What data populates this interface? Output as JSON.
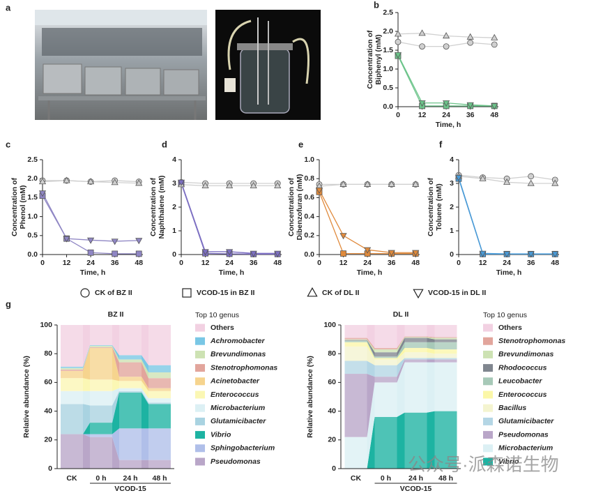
{
  "panel_a": {
    "label": "a"
  },
  "legend": [
    {
      "name": "CK of BZ II",
      "marker": "circle"
    },
    {
      "name": "VCOD-15 in BZ II",
      "marker": "square"
    },
    {
      "name": "CK of DL II",
      "marker": "triangle"
    },
    {
      "name": "VCOD-15 in DL II",
      "marker": "triangle-down"
    }
  ],
  "watermark": "公众号·派森诺生物",
  "chart_data": [
    {
      "type": "line",
      "label": "b",
      "ylabel": [
        "Concentration of",
        "Biphenyl (mM)"
      ],
      "xlabel": "Time, h",
      "x": [
        0,
        12,
        24,
        36,
        48
      ],
      "xlim": [
        0,
        50
      ],
      "xticks": [
        0,
        12,
        24,
        36,
        48
      ],
      "ylim": [
        0,
        2.5
      ],
      "yticks": [
        {
          "value": 0,
          "label": "0.0"
        },
        0.5,
        {
          "value": 1,
          "label": "1.0"
        },
        1.5,
        {
          "value": 2,
          "label": "2.0"
        },
        2.5
      ],
      "series": [
        {
          "marker": "circle",
          "color": "#d0d0d0",
          "values": [
            1.72,
            1.6,
            1.6,
            1.7,
            1.65
          ]
        },
        {
          "marker": "square",
          "color": "#6cc48a",
          "values": [
            1.35,
            0.02,
            0.02,
            0.02,
            0.02
          ]
        },
        {
          "marker": "triangle",
          "color": "#d0d0d0",
          "values": [
            1.93,
            1.95,
            1.88,
            1.85,
            1.83
          ]
        },
        {
          "marker": "triangle-down",
          "color": "#6cc48a",
          "values": [
            1.38,
            0.1,
            0.1,
            0.05,
            0.02
          ]
        }
      ]
    },
    {
      "type": "line",
      "label": "c",
      "ylabel": [
        "Concentration of",
        "Phenol (mM)"
      ],
      "xlabel": "Time, h",
      "x": [
        0,
        12,
        24,
        36,
        48
      ],
      "xlim": [
        0,
        50
      ],
      "xticks": [
        0,
        12,
        24,
        36,
        48
      ],
      "ylim": [
        0,
        2.5
      ],
      "yticks": [
        {
          "value": 0,
          "label": "0.0"
        },
        0.5,
        {
          "value": 1,
          "label": "1.0"
        },
        1.5,
        {
          "value": 2,
          "label": "2.0"
        },
        2.5
      ],
      "series": [
        {
          "marker": "circle",
          "color": "#d0d0d0",
          "values": [
            1.95,
            1.95,
            1.92,
            1.95,
            1.92
          ]
        },
        {
          "marker": "square",
          "color": "#8f86c4",
          "values": [
            1.55,
            0.42,
            0.05,
            0.02,
            0.02
          ]
        },
        {
          "marker": "triangle",
          "color": "#d0d0d0",
          "values": [
            1.92,
            1.95,
            1.92,
            1.9,
            1.88
          ]
        },
        {
          "marker": "triangle-down",
          "color": "#8f86c4",
          "values": [
            1.62,
            0.42,
            0.38,
            0.35,
            0.37
          ]
        }
      ]
    },
    {
      "type": "line",
      "label": "d",
      "ylabel": [
        "Concentration of",
        "Naphthalene (mM)"
      ],
      "xlabel": "Time, h",
      "x": [
        0,
        12,
        24,
        36,
        48
      ],
      "xlim": [
        0,
        50
      ],
      "xticks": [
        0,
        12,
        24,
        36,
        48
      ],
      "ylim": [
        0,
        4
      ],
      "yticks": [
        0,
        1,
        2,
        3,
        4
      ],
      "series": [
        {
          "marker": "circle",
          "color": "#d0d0d0",
          "values": [
            3.05,
            3.0,
            3.0,
            3.0,
            3.0
          ]
        },
        {
          "marker": "square",
          "color": "#7c6fc2",
          "values": [
            3.0,
            0.05,
            0.03,
            0.02,
            0.02
          ]
        },
        {
          "marker": "triangle",
          "color": "#d0d0d0",
          "values": [
            2.95,
            2.9,
            2.9,
            2.9,
            2.9
          ]
        },
        {
          "marker": "triangle-down",
          "color": "#7c6fc2",
          "values": [
            3.05,
            0.12,
            0.12,
            0.05,
            0.05
          ]
        }
      ]
    },
    {
      "type": "line",
      "label": "e",
      "ylabel": [
        "Concentration of",
        "Dibenzofuran (mM)"
      ],
      "xlabel": "Time, h",
      "x": [
        0,
        12,
        24,
        36,
        48
      ],
      "xlim": [
        0,
        50
      ],
      "xticks": [
        0,
        12,
        24,
        36,
        48
      ],
      "ylim": [
        0,
        1
      ],
      "yticks": [
        {
          "value": 0,
          "label": "0.0"
        },
        0.2,
        0.4,
        0.6,
        0.8,
        {
          "value": 1,
          "label": "1.0"
        }
      ],
      "series": [
        {
          "marker": "circle",
          "color": "#d0d0d0",
          "values": [
            0.74,
            0.74,
            0.74,
            0.74,
            0.74
          ]
        },
        {
          "marker": "square",
          "color": "#e08a3c",
          "values": [
            0.66,
            0.01,
            0.01,
            0.01,
            0.01
          ]
        },
        {
          "marker": "triangle",
          "color": "#d0d0d0",
          "values": [
            0.72,
            0.74,
            0.74,
            0.74,
            0.74
          ]
        },
        {
          "marker": "triangle-down",
          "color": "#e08a3c",
          "values": [
            0.68,
            0.2,
            0.05,
            0.02,
            0.02
          ]
        }
      ]
    },
    {
      "type": "line",
      "label": "f",
      "ylabel": [
        "Concentration of",
        "Toluene (mM)"
      ],
      "xlabel": "Time, h",
      "x": [
        0,
        12,
        24,
        36,
        48
      ],
      "xlim": [
        0,
        50
      ],
      "xticks": [
        0,
        12,
        24,
        36,
        48
      ],
      "ylim": [
        0,
        4
      ],
      "yticks": [
        0,
        1,
        2,
        3,
        4
      ],
      "series": [
        {
          "marker": "circle",
          "color": "#d0d0d0",
          "values": [
            3.35,
            3.25,
            3.2,
            3.3,
            3.15
          ]
        },
        {
          "marker": "square",
          "color": "#4a9ad6",
          "values": [
            3.2,
            0.02,
            0.02,
            0.02,
            0.02
          ]
        },
        {
          "marker": "triangle",
          "color": "#d0d0d0",
          "values": [
            3.3,
            3.2,
            3.05,
            3.0,
            3.0
          ]
        },
        {
          "marker": "triangle-down",
          "color": "#4a9ad6",
          "values": [
            3.25,
            0.05,
            0.03,
            0.03,
            0.03
          ]
        }
      ]
    },
    {
      "type": "stacked_flow",
      "label": "g",
      "title": "BZ II",
      "ylabel": "Relative abundance (%)",
      "categories": [
        "CK",
        "0 h",
        "24 h",
        "48 h"
      ],
      "group_label": "VCOD-15",
      "legend_title": "Top 10 genus",
      "ylim": [
        0,
        100
      ],
      "yticks": [
        0,
        20,
        40,
        60,
        80,
        100
      ],
      "series": [
        {
          "name": "Pseudomonas",
          "italic": true,
          "color": "#b9a6c8",
          "values": [
            24,
            22,
            6,
            6
          ]
        },
        {
          "name": "Sphingobacterium",
          "italic": true,
          "color": "#b0bfe9",
          "values": [
            0,
            2,
            22,
            22
          ]
        },
        {
          "name": "Vibrio",
          "italic": true,
          "color": "#1db3a2",
          "values": [
            0,
            8,
            25,
            17
          ]
        },
        {
          "name": "Glutamicibacter",
          "italic": true,
          "color": "#a9d3e1",
          "values": [
            21,
            12,
            1,
            1
          ]
        },
        {
          "name": "Microbacterium",
          "italic": true,
          "color": "#dcf0f4",
          "values": [
            9,
            10,
            2,
            3
          ]
        },
        {
          "name": "Enterococcus",
          "italic": true,
          "color": "#fbf7b4",
          "values": [
            9,
            8,
            5,
            5
          ]
        },
        {
          "name": "Acinetobacter",
          "italic": true,
          "color": "#f6d48e",
          "values": [
            5,
            22,
            3,
            2
          ]
        },
        {
          "name": "Stenotrophomonas",
          "italic": true,
          "color": "#e2a59c",
          "values": [
            1,
            0.5,
            10,
            7
          ]
        },
        {
          "name": "Brevundimonas",
          "italic": true,
          "color": "#cde2b3",
          "values": [
            1,
            1,
            2,
            4
          ]
        },
        {
          "name": "Achromobacter",
          "italic": true,
          "color": "#79c7e5",
          "values": [
            1,
            0.5,
            3,
            5
          ]
        },
        {
          "name": "Others",
          "color": "#f2d1e2",
          "values": [
            29,
            14,
            21,
            28
          ]
        }
      ]
    },
    {
      "type": "stacked_flow",
      "title": "DL II",
      "ylabel": "Relative abundance (%)",
      "categories": [
        "CK",
        "0 h",
        "24 h",
        "48 h"
      ],
      "group_label": "VCOD-15",
      "legend_title": "Top 10 genus",
      "ylim": [
        0,
        100
      ],
      "yticks": [
        0,
        20,
        40,
        60,
        80,
        100
      ],
      "series": [
        {
          "name": "Vibrio",
          "italic": true,
          "color": "#1db3a2",
          "values": [
            0,
            36,
            39,
            40
          ]
        },
        {
          "name": "Microbacterium",
          "italic": true,
          "color": "#dcf0f4",
          "values": [
            22,
            24,
            35,
            34
          ]
        },
        {
          "name": "Pseudomonas",
          "italic": true,
          "color": "#b9a6c8",
          "values": [
            44,
            4,
            2,
            2
          ]
        },
        {
          "name": "Glutamicibacter",
          "italic": true,
          "color": "#b4d6e5",
          "values": [
            9,
            8,
            1,
            1
          ]
        },
        {
          "name": "Bacillus",
          "italic": true,
          "color": "#f4f4d0",
          "values": [
            10,
            4,
            4,
            3
          ]
        },
        {
          "name": "Enterococcus",
          "italic": true,
          "color": "#fbf7a8",
          "values": [
            3,
            1,
            3,
            3
          ]
        },
        {
          "name": "Leucobacter",
          "italic": true,
          "color": "#a7c9b8",
          "values": [
            1,
            1,
            4,
            5
          ]
        },
        {
          "name": "Rhodococcus",
          "italic": true,
          "color": "#80868f",
          "values": [
            0.5,
            3,
            3,
            2
          ]
        },
        {
          "name": "Brevundimonas",
          "italic": true,
          "color": "#cde2b3",
          "values": [
            0.5,
            2,
            0.5,
            1
          ]
        },
        {
          "name": "Stenotrophomonas",
          "italic": true,
          "color": "#e2a59c",
          "values": [
            1,
            1,
            0.5,
            0.5
          ]
        },
        {
          "name": "Others",
          "color": "#f2d1e2",
          "values": [
            9,
            16,
            8,
            8.5
          ]
        }
      ]
    }
  ]
}
